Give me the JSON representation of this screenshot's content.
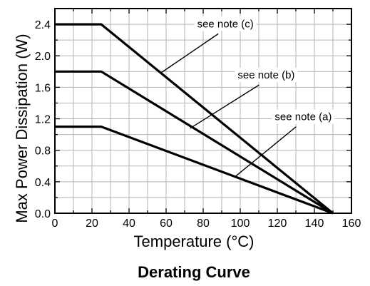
{
  "chart_data": {
    "type": "line",
    "title": "Derating Curve",
    "xlabel": "Temperature (°C)",
    "ylabel": "Max Power Dissipation (W)",
    "xlim": [
      0,
      160
    ],
    "ylim": [
      0,
      2.6
    ],
    "x_ticks": [
      0,
      20,
      40,
      60,
      80,
      100,
      120,
      140,
      160
    ],
    "y_ticks": [
      0.0,
      0.4,
      0.8,
      1.2,
      1.6,
      2.0,
      2.4
    ],
    "x_tick_labels": [
      "0",
      "20",
      "40",
      "60",
      "80",
      "100",
      "120",
      "140",
      "160"
    ],
    "y_tick_labels": [
      "0.0",
      "0.4",
      "0.8",
      "1.2",
      "1.6",
      "2.0",
      "2.4"
    ],
    "grid": true,
    "series": [
      {
        "x": [
          0,
          25,
          150
        ],
        "y": [
          2.4,
          2.4,
          0
        ]
      },
      {
        "x": [
          0,
          25,
          150
        ],
        "y": [
          1.8,
          1.8,
          0
        ]
      },
      {
        "x": [
          0,
          25,
          150
        ],
        "y": [
          1.1,
          1.1,
          0
        ]
      }
    ],
    "annotations": [
      {
        "text": "see note (c)",
        "series_index": 0,
        "x": 92,
        "y": 2.37,
        "target_x": 57,
        "target_y": 1.78
      },
      {
        "text": "see note (b)",
        "series_index": 1,
        "x": 114,
        "y": 1.72,
        "target_x": 73,
        "target_y": 1.08
      },
      {
        "text": "see note (a)",
        "series_index": 2,
        "x": 134,
        "y": 1.19,
        "target_x": 97,
        "target_y": 0.46
      }
    ]
  }
}
